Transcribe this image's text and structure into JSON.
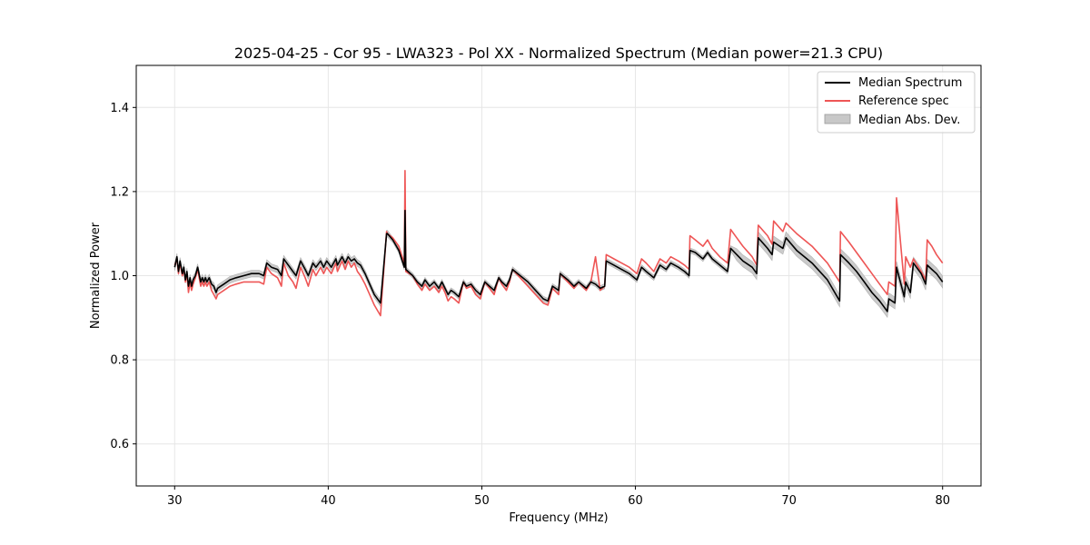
{
  "chart_data": {
    "type": "line",
    "title": "2025-04-25 - Cor 95 - LWA323 - Pol XX - Normalized Spectrum (Median power=21.3 CPU)",
    "xlabel": "Frequency (MHz)",
    "ylabel": "Normalized Power",
    "xlim": [
      27.5,
      82.5
    ],
    "ylim": [
      0.5,
      1.5
    ],
    "xticks": [
      30,
      40,
      50,
      60,
      70,
      80
    ],
    "yticks": [
      0.6,
      0.8,
      1.0,
      1.2,
      1.4
    ],
    "xtick_labels": [
      "30",
      "40",
      "50",
      "60",
      "70",
      "80"
    ],
    "ytick_labels": [
      "0.6",
      "0.8",
      "1.0",
      "1.2",
      "1.4"
    ],
    "grid": true,
    "legend_position": "top-right",
    "legend": [
      {
        "label": "Median Spectrum",
        "kind": "line",
        "color": "#000000"
      },
      {
        "label": "Reference spec",
        "kind": "line",
        "color": "#ee5555"
      },
      {
        "label": "Median Abs. Dev.",
        "kind": "patch",
        "color": "#c8c8c8"
      }
    ],
    "series": [
      {
        "name": "Median Spectrum",
        "color": "#000000",
        "x": [
          30,
          30.15,
          30.25,
          30.35,
          30.5,
          30.6,
          30.7,
          30.8,
          30.9,
          31.0,
          31.1,
          31.2,
          31.35,
          31.5,
          31.7,
          31.8,
          31.9,
          32.0,
          32.1,
          32.25,
          32.4,
          32.55,
          32.7,
          32.8,
          33.0,
          33.2,
          33.6,
          34.0,
          34.5,
          35.0,
          35.5,
          35.8,
          36.0,
          36.3,
          36.7,
          36.95,
          37.1,
          37.4,
          37.7,
          37.9,
          38.2,
          38.5,
          38.7,
          39.0,
          39.2,
          39.5,
          39.7,
          39.9,
          40.2,
          40.5,
          40.6,
          40.9,
          41.1,
          41.3,
          41.5,
          41.7,
          41.9,
          42.1,
          42.4,
          42.7,
          43.0,
          43.4,
          43.8,
          43.85,
          44.2,
          44.6,
          44.95,
          45.0,
          45.05,
          45.5,
          45.8,
          46.1,
          46.3,
          46.6,
          46.9,
          47.2,
          47.4,
          47.6,
          47.8,
          48.0,
          48.2,
          48.5,
          48.8,
          49.0,
          49.3,
          49.6,
          49.9,
          50.2,
          50.5,
          50.8,
          51.1,
          51.3,
          51.6,
          51.8,
          52.0,
          52.5,
          53.0,
          53.5,
          54.0,
          54.3,
          54.6,
          55.0,
          55.1,
          55.6,
          56.0,
          56.3,
          56.8,
          57.1,
          57.4,
          57.7,
          58.0,
          58.1,
          58.6,
          59.1,
          59.6,
          60.1,
          60.4,
          60.7,
          61.2,
          61.6,
          62.0,
          62.3,
          62.8,
          63.2,
          63.5,
          63.55,
          63.9,
          64.4,
          64.7,
          65.0,
          65.5,
          66.0,
          66.2,
          66.6,
          67.0,
          67.6,
          67.9,
          68.0,
          68.6,
          68.9,
          69.0,
          69.6,
          69.8,
          70.5,
          71.5,
          72.5,
          73.3,
          73.35,
          73.9,
          74.4,
          74.9,
          75.4,
          75.9,
          76.4,
          76.5,
          76.9,
          77.0,
          77.5,
          77.6,
          77.9,
          78.1,
          78.6,
          78.9,
          79.0,
          79.3,
          79.6,
          80.0
        ],
        "y": [
          1.02,
          1.045,
          1.01,
          1.035,
          1.005,
          1.02,
          0.99,
          1.01,
          0.975,
          0.995,
          0.975,
          0.99,
          1.0,
          1.02,
          0.985,
          0.995,
          0.985,
          0.995,
          0.985,
          0.995,
          0.98,
          0.975,
          0.96,
          0.97,
          0.975,
          0.98,
          0.99,
          0.995,
          1.0,
          1.005,
          1.005,
          1.0,
          1.03,
          1.02,
          1.015,
          1.0,
          1.04,
          1.025,
          1.01,
          1.0,
          1.035,
          1.015,
          1.0,
          1.03,
          1.02,
          1.035,
          1.02,
          1.035,
          1.02,
          1.04,
          1.025,
          1.045,
          1.03,
          1.045,
          1.035,
          1.04,
          1.03,
          1.025,
          1.005,
          0.98,
          0.955,
          0.935,
          1.1,
          1.1,
          1.085,
          1.06,
          1.02,
          1.155,
          1.015,
          1.0,
          0.985,
          0.975,
          0.99,
          0.975,
          0.985,
          0.97,
          0.985,
          0.97,
          0.955,
          0.965,
          0.96,
          0.95,
          0.985,
          0.975,
          0.98,
          0.965,
          0.955,
          0.985,
          0.975,
          0.965,
          0.995,
          0.985,
          0.975,
          0.99,
          1.015,
          1.0,
          0.985,
          0.965,
          0.945,
          0.94,
          0.975,
          0.965,
          1.005,
          0.99,
          0.975,
          0.985,
          0.97,
          0.985,
          0.98,
          0.97,
          0.975,
          1.035,
          1.025,
          1.015,
          1.005,
          0.99,
          1.02,
          1.01,
          0.995,
          1.025,
          1.015,
          1.03,
          1.02,
          1.01,
          1.0,
          1.06,
          1.055,
          1.04,
          1.055,
          1.04,
          1.025,
          1.01,
          1.065,
          1.05,
          1.035,
          1.02,
          1.005,
          1.09,
          1.065,
          1.05,
          1.08,
          1.065,
          1.09,
          1.06,
          1.03,
          0.99,
          0.94,
          1.05,
          1.03,
          1.01,
          0.985,
          0.96,
          0.94,
          0.915,
          0.945,
          0.935,
          1.02,
          0.95,
          0.985,
          0.96,
          1.03,
          1.005,
          0.98,
          1.025,
          1.015,
          1.005,
          0.985
        ]
      },
      {
        "name": "Reference spec",
        "color": "#ee5555",
        "x": [
          30,
          30.15,
          30.25,
          30.35,
          30.5,
          30.6,
          30.7,
          30.8,
          30.9,
          31.0,
          31.1,
          31.2,
          31.35,
          31.5,
          31.7,
          31.8,
          31.9,
          32.0,
          32.1,
          32.25,
          32.4,
          32.55,
          32.7,
          32.8,
          33.0,
          33.2,
          33.6,
          34.0,
          34.5,
          35.0,
          35.5,
          35.8,
          36.0,
          36.3,
          36.7,
          36.95,
          37.1,
          37.4,
          37.7,
          37.9,
          38.2,
          38.5,
          38.7,
          39.0,
          39.2,
          39.5,
          39.7,
          39.9,
          40.2,
          40.5,
          40.6,
          40.9,
          41.1,
          41.3,
          41.5,
          41.7,
          41.9,
          42.1,
          42.4,
          42.7,
          43.0,
          43.4,
          43.8,
          43.85,
          44.2,
          44.6,
          44.95,
          45.0,
          45.05,
          45.5,
          45.8,
          46.1,
          46.3,
          46.6,
          46.9,
          47.2,
          47.4,
          47.6,
          47.8,
          48.0,
          48.2,
          48.5,
          48.8,
          49.0,
          49.3,
          49.6,
          49.9,
          50.2,
          50.5,
          50.8,
          51.1,
          51.3,
          51.6,
          51.8,
          52.0,
          52.5,
          53.0,
          53.5,
          54.0,
          54.3,
          54.6,
          55.0,
          55.1,
          55.6,
          56.0,
          56.3,
          56.8,
          57.1,
          57.4,
          57.7,
          58.0,
          58.1,
          58.6,
          59.1,
          59.6,
          60.1,
          60.4,
          60.7,
          61.2,
          61.6,
          62.0,
          62.3,
          62.8,
          63.2,
          63.5,
          63.55,
          63.9,
          64.4,
          64.7,
          65.0,
          65.5,
          66.0,
          66.2,
          66.6,
          67.0,
          67.6,
          67.9,
          68.0,
          68.6,
          68.9,
          69.0,
          69.6,
          69.8,
          70.5,
          71.5,
          72.5,
          73.3,
          73.35,
          73.9,
          74.4,
          74.9,
          75.4,
          75.9,
          76.4,
          76.5,
          76.9,
          77.0,
          77.5,
          77.6,
          77.9,
          78.1,
          78.6,
          78.9,
          79.0,
          79.3,
          79.6,
          80.0
        ],
        "y": [
          1.025,
          1.04,
          1.005,
          1.03,
          1.0,
          1.015,
          0.985,
          1.005,
          0.96,
          0.985,
          0.965,
          0.98,
          0.995,
          1.015,
          0.975,
          0.985,
          0.975,
          0.985,
          0.975,
          0.985,
          0.965,
          0.955,
          0.945,
          0.955,
          0.96,
          0.965,
          0.975,
          0.98,
          0.985,
          0.985,
          0.985,
          0.98,
          1.02,
          1.005,
          0.995,
          0.975,
          1.03,
          1.0,
          0.985,
          0.97,
          1.02,
          0.995,
          0.975,
          1.015,
          1.0,
          1.02,
          1.005,
          1.02,
          1.005,
          1.03,
          1.01,
          1.035,
          1.015,
          1.035,
          1.02,
          1.03,
          1.01,
          1.0,
          0.98,
          0.955,
          0.93,
          0.905,
          1.105,
          1.1,
          1.09,
          1.07,
          1.03,
          1.25,
          1.01,
          1.0,
          0.98,
          0.965,
          0.98,
          0.965,
          0.975,
          0.96,
          0.975,
          0.96,
          0.94,
          0.95,
          0.945,
          0.935,
          0.985,
          0.97,
          0.975,
          0.955,
          0.945,
          0.985,
          0.97,
          0.955,
          0.995,
          0.98,
          0.965,
          0.985,
          1.015,
          0.995,
          0.975,
          0.955,
          0.935,
          0.93,
          0.97,
          0.955,
          1.005,
          0.985,
          0.97,
          0.985,
          0.965,
          0.985,
          1.045,
          0.965,
          0.975,
          1.05,
          1.04,
          1.03,
          1.02,
          1.005,
          1.04,
          1.03,
          1.01,
          1.04,
          1.03,
          1.045,
          1.035,
          1.025,
          1.015,
          1.095,
          1.085,
          1.07,
          1.085,
          1.065,
          1.045,
          1.03,
          1.11,
          1.09,
          1.07,
          1.045,
          1.025,
          1.12,
          1.095,
          1.075,
          1.13,
          1.105,
          1.125,
          1.1,
          1.07,
          1.03,
          0.985,
          1.105,
          1.08,
          1.055,
          1.03,
          1.005,
          0.98,
          0.955,
          0.985,
          0.975,
          1.185,
          0.98,
          1.045,
          1.02,
          1.04,
          1.01,
          0.99,
          1.085,
          1.07,
          1.05,
          1.03
        ]
      }
    ],
    "band": {
      "name": "Median Abs. Dev.",
      "color": "#c8c8c8",
      "x_ranges": [
        {
          "x0": 30,
          "x1": 43.85,
          "width": 0.008
        },
        {
          "x0": 43.85,
          "x1": 66.2,
          "width": 0.006
        },
        {
          "x0": 66.2,
          "x1": 80,
          "width": 0.014
        }
      ]
    }
  }
}
